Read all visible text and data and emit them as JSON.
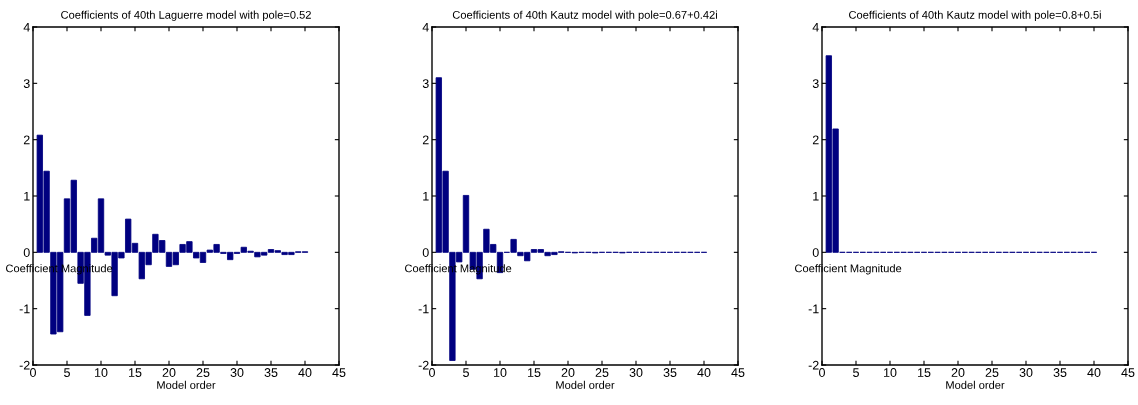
{
  "chart_data": [
    {
      "type": "bar",
      "title": "Coefficients of 40th Laguerre model with pole=0.52",
      "xlabel": "Model order",
      "annotations": [
        "Coefficient Magnitude"
      ],
      "x": [
        1,
        2,
        3,
        4,
        5,
        6,
        7,
        8,
        9,
        10,
        11,
        12,
        13,
        14,
        15,
        16,
        17,
        18,
        19,
        20,
        21,
        22,
        23,
        24,
        25,
        26,
        27,
        28,
        29,
        30,
        31,
        32,
        33,
        34,
        35,
        36,
        37,
        38,
        39,
        40
      ],
      "values": [
        2.08,
        1.44,
        -1.45,
        -1.41,
        0.95,
        1.28,
        -0.55,
        -1.12,
        0.25,
        0.95,
        -0.05,
        -0.77,
        -0.1,
        0.59,
        0.16,
        -0.47,
        -0.22,
        0.32,
        0.21,
        -0.25,
        -0.22,
        0.14,
        0.19,
        -0.1,
        -0.18,
        0.04,
        0.14,
        -0.02,
        -0.13,
        -0.02,
        0.09,
        0.02,
        -0.08,
        -0.05,
        0.05,
        0.03,
        -0.04,
        -0.04,
        0.01,
        0.01
      ],
      "color": "#000080",
      "xlim": [
        0,
        45
      ],
      "xticks": [
        0,
        5,
        10,
        15,
        20,
        25,
        30,
        35,
        40,
        45
      ],
      "ylim": [
        -2,
        4
      ],
      "yticks": [
        -2,
        -1,
        0,
        1,
        2,
        3,
        4
      ],
      "grid": false,
      "legend": false
    },
    {
      "type": "bar",
      "title": "Coefficients of 40th Kautz model with pole=0.67+0.42i",
      "xlabel": "Model order",
      "annotations": [
        "Coefficient Magnitude"
      ],
      "x": [
        1,
        2,
        3,
        4,
        5,
        6,
        7,
        8,
        9,
        10,
        11,
        12,
        13,
        14,
        15,
        16,
        17,
        18,
        19,
        20,
        21,
        22,
        23,
        24,
        25,
        26,
        27,
        28,
        29,
        30,
        31,
        32,
        33,
        34,
        35,
        36,
        37,
        38,
        39,
        40
      ],
      "values": [
        3.1,
        1.44,
        -1.92,
        -0.17,
        1.01,
        -0.3,
        -0.47,
        0.41,
        0.14,
        -0.36,
        0,
        0.23,
        -0.06,
        -0.15,
        0.05,
        0.05,
        -0.06,
        -0.04,
        0.01,
        0,
        -0.01,
        0,
        0,
        -0.01,
        0,
        0,
        0,
        -0.01,
        0,
        0,
        0,
        0,
        0,
        0,
        0,
        0,
        0,
        0,
        0,
        0
      ],
      "color": "#000080",
      "xlim": [
        0,
        45
      ],
      "xticks": [
        0,
        5,
        10,
        15,
        20,
        25,
        30,
        35,
        40,
        45
      ],
      "ylim": [
        -2,
        4
      ],
      "yticks": [
        -2,
        -1,
        0,
        1,
        2,
        3,
        4
      ],
      "grid": false,
      "legend": false
    },
    {
      "type": "bar",
      "title": "Coefficients of 40th Kautz model with pole=0.8+0.5i",
      "xlabel": "Model order",
      "annotations": [
        "Coefficient Magnitude"
      ],
      "x": [
        1,
        2,
        3,
        4,
        5,
        6,
        7,
        8,
        9,
        10,
        11,
        12,
        13,
        14,
        15,
        16,
        17,
        18,
        19,
        20,
        21,
        22,
        23,
        24,
        25,
        26,
        27,
        28,
        29,
        30,
        31,
        32,
        33,
        34,
        35,
        36,
        37,
        38,
        39,
        40
      ],
      "values": [
        3.49,
        2.19,
        0,
        0,
        0,
        0,
        0,
        0,
        0,
        0,
        0,
        0,
        0,
        0,
        0,
        0,
        0,
        0,
        0,
        0,
        0,
        0,
        0,
        0,
        0,
        0,
        0,
        0,
        0,
        0,
        0,
        0,
        0,
        0,
        0,
        0,
        0,
        0,
        0,
        0
      ],
      "color": "#000080",
      "xlim": [
        0,
        45
      ],
      "xticks": [
        0,
        5,
        10,
        15,
        20,
        25,
        30,
        35,
        40,
        45
      ],
      "ylim": [
        -2,
        4
      ],
      "yticks": [
        -2,
        -1,
        0,
        1,
        2,
        3,
        4
      ],
      "grid": false,
      "legend": false
    }
  ]
}
